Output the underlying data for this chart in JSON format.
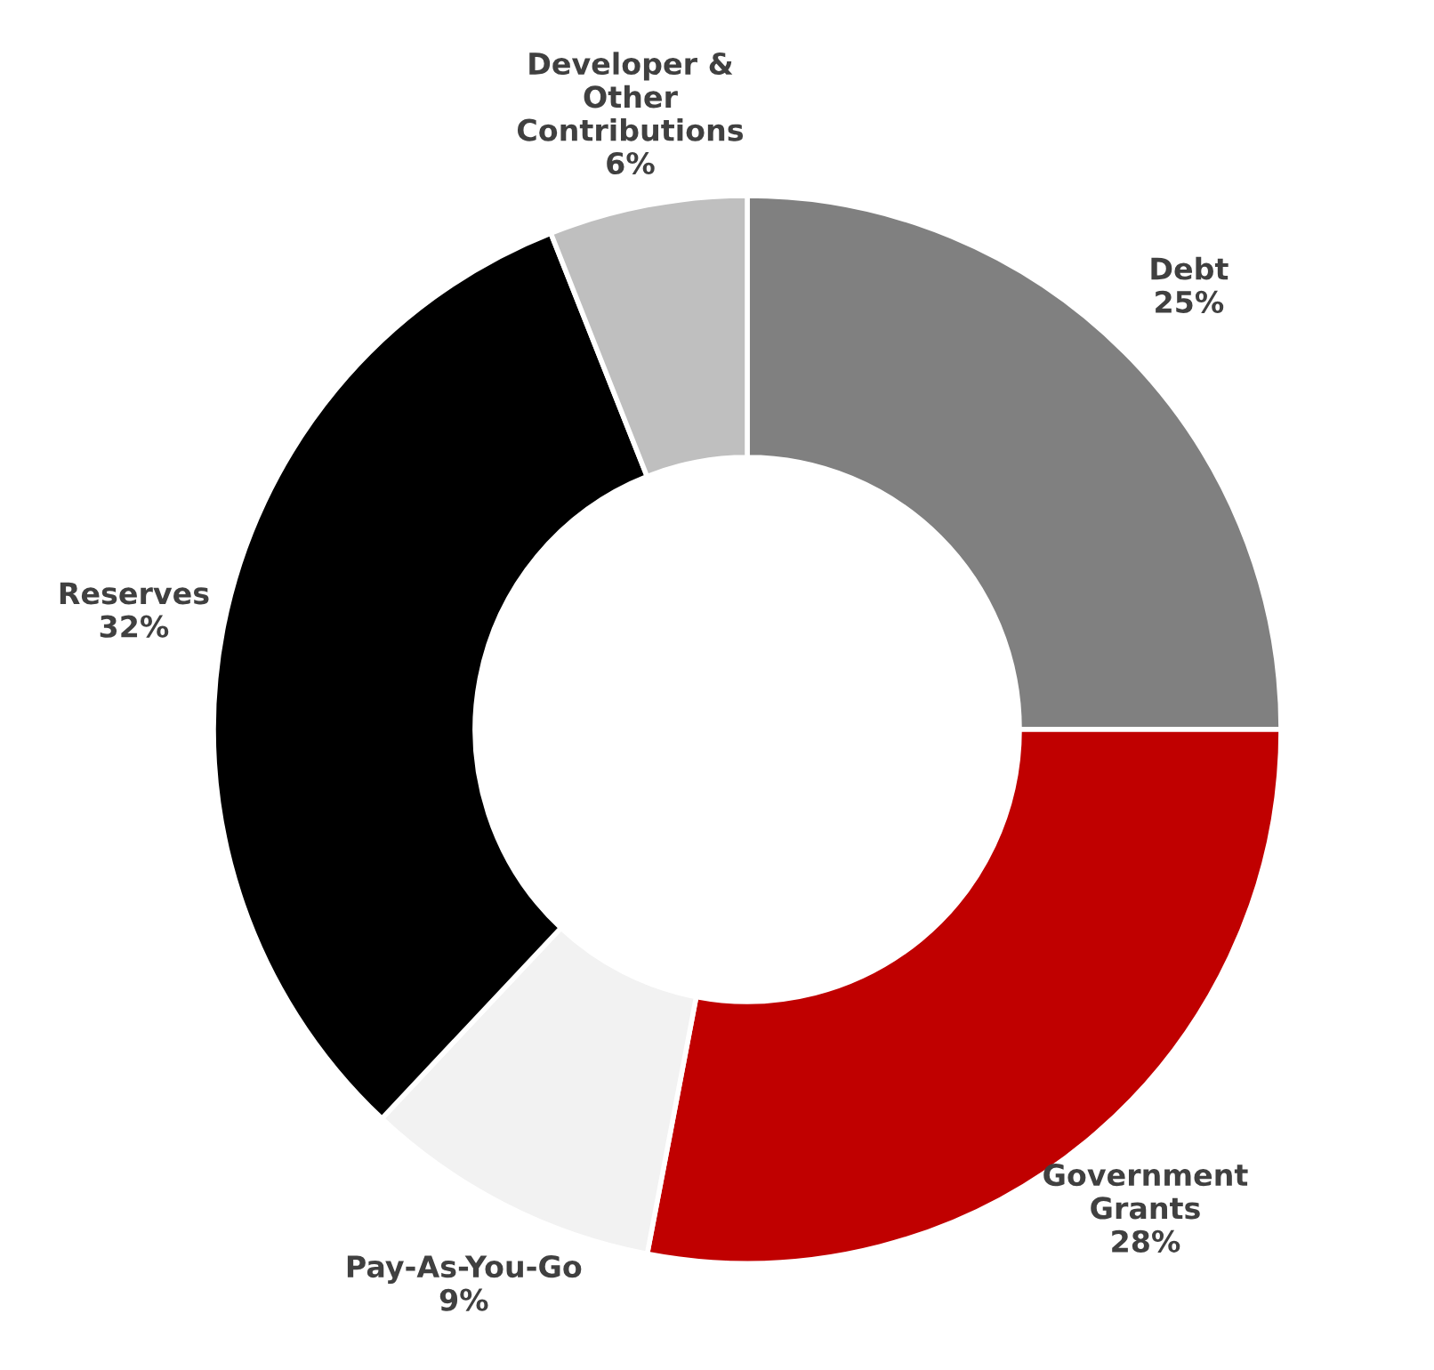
{
  "chart_data": {
    "type": "donut",
    "categories": [
      "Debt",
      "Government\nGrants",
      "Pay-As-You-Go",
      "Reserves",
      "Developer &\nOther\nContributions"
    ],
    "values": [
      25,
      28,
      9,
      32,
      6
    ],
    "value_labels": [
      "25%",
      "28%",
      "9%",
      "32%",
      "6%"
    ],
    "colors": [
      "#808080",
      "#c00000",
      "#f2f2f2",
      "#000000",
      "#bfbfbf"
    ]
  }
}
